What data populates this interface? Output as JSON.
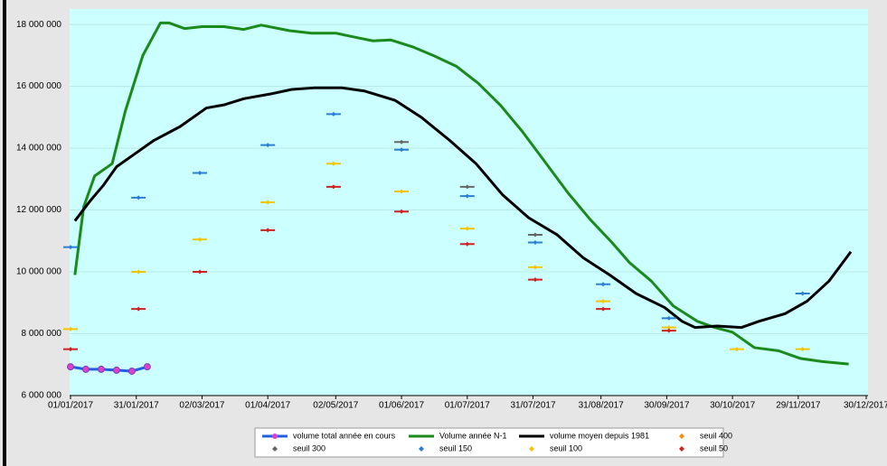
{
  "chart_data": {
    "type": "line",
    "xlim": [
      "2017-01-01",
      "2017-12-30"
    ],
    "xticks": [
      {
        "value": "2017-01-01",
        "label": "01/01/2017"
      },
      {
        "value": "2017-01-31",
        "label": "31/01/2017"
      },
      {
        "value": "2017-03-02",
        "label": "02/03/2017"
      },
      {
        "value": "2017-04-01",
        "label": "01/04/2017"
      },
      {
        "value": "2017-05-02",
        "label": "02/05/2017"
      },
      {
        "value": "2017-06-01",
        "label": "01/06/2017"
      },
      {
        "value": "2017-07-01",
        "label": "01/07/2017"
      },
      {
        "value": "2017-07-31",
        "label": "31/07/2017"
      },
      {
        "value": "2017-08-31",
        "label": "31/08/2017"
      },
      {
        "value": "2017-09-30",
        "label": "30/09/2017"
      },
      {
        "value": "2017-10-30",
        "label": "30/10/2017"
      },
      {
        "value": "2017-11-29",
        "label": "29/11/2017"
      },
      {
        "value": "2017-12-30",
        "label": "30/12/2017"
      }
    ],
    "ylim": [
      6000000,
      18500000
    ],
    "yticks": [
      {
        "value": 6000000,
        "label": "6 000 000"
      },
      {
        "value": 8000000,
        "label": "8 000 000"
      },
      {
        "value": 10000000,
        "label": "10 000 000"
      },
      {
        "value": 12000000,
        "label": "12 000 000"
      },
      {
        "value": 14000000,
        "label": "14 000 000"
      },
      {
        "value": 16000000,
        "label": "16 000 000"
      },
      {
        "value": 18000000,
        "label": "18 000 000"
      }
    ],
    "grid": true,
    "legend": "bottom",
    "series": [
      {
        "name": "volume total année en cours",
        "kind": "line",
        "color": "#2060e0",
        "marker_color": "#e040c8",
        "x": [
          "2017-01-01",
          "2017-01-08",
          "2017-01-15",
          "2017-01-22",
          "2017-01-29",
          "2017-02-05"
        ],
        "values": [
          6930000,
          6850000,
          6850000,
          6820000,
          6790000,
          6930000
        ]
      },
      {
        "name": "Volume année N-1",
        "kind": "line",
        "color": "#1a8a1a",
        "x": [
          "2017-01-03",
          "2017-01-07",
          "2017-01-12",
          "2017-01-20",
          "2017-01-26",
          "2017-02-03",
          "2017-02-11",
          "2017-02-15",
          "2017-02-22",
          "2017-03-02",
          "2017-03-12",
          "2017-03-21",
          "2017-03-29",
          "2017-04-11",
          "2017-04-21",
          "2017-05-02",
          "2017-05-12",
          "2017-05-19",
          "2017-05-27",
          "2017-06-06",
          "2017-06-16",
          "2017-06-26",
          "2017-07-06",
          "2017-07-16",
          "2017-07-26",
          "2017-08-05",
          "2017-08-16",
          "2017-08-26",
          "2017-09-05",
          "2017-09-13",
          "2017-09-23",
          "2017-10-03",
          "2017-10-14",
          "2017-10-22",
          "2017-10-30",
          "2017-11-09",
          "2017-11-20",
          "2017-11-30",
          "2017-12-10",
          "2017-12-22"
        ],
        "values": [
          9900000,
          12100000,
          13100000,
          13500000,
          15200000,
          17000000,
          18050000,
          18050000,
          17870000,
          17930000,
          17930000,
          17840000,
          17980000,
          17800000,
          17720000,
          17720000,
          17570000,
          17470000,
          17500000,
          17280000,
          16980000,
          16650000,
          16100000,
          15400000,
          14550000,
          13600000,
          12550000,
          11700000,
          10950000,
          10300000,
          9700000,
          8900000,
          8400000,
          8200000,
          8050000,
          7550000,
          7450000,
          7200000,
          7100000,
          7020000
        ]
      },
      {
        "name": "volume moyen depuis 1981",
        "kind": "line",
        "color": "#000000",
        "x": [
          "2017-01-03",
          "2017-01-10",
          "2017-01-16",
          "2017-01-22",
          "2017-01-30",
          "2017-02-08",
          "2017-02-20",
          "2017-03-04",
          "2017-03-12",
          "2017-03-21",
          "2017-04-02",
          "2017-04-12",
          "2017-04-22",
          "2017-05-05",
          "2017-05-15",
          "2017-05-29",
          "2017-06-10",
          "2017-06-23",
          "2017-07-05",
          "2017-07-17",
          "2017-07-29",
          "2017-08-11",
          "2017-08-23",
          "2017-09-04",
          "2017-09-16",
          "2017-09-29",
          "2017-10-07",
          "2017-10-13",
          "2017-10-23",
          "2017-11-03",
          "2017-11-11",
          "2017-11-23",
          "2017-12-03",
          "2017-12-13",
          "2017-12-23"
        ],
        "values": [
          11650000,
          12300000,
          12800000,
          13400000,
          13800000,
          14250000,
          14700000,
          15300000,
          15400000,
          15600000,
          15750000,
          15900000,
          15950000,
          15950000,
          15850000,
          15550000,
          15000000,
          14250000,
          13500000,
          12500000,
          11750000,
          11200000,
          10450000,
          9900000,
          9300000,
          8850000,
          8400000,
          8200000,
          8250000,
          8200000,
          8400000,
          8650000,
          9050000,
          9700000,
          10650000
        ]
      },
      {
        "name": "seuil 400",
        "kind": "scatter",
        "color": "#ff8c00",
        "x": [
          "2017-01-01",
          "2017-02-01",
          "2017-03-01",
          "2017-04-01",
          "2017-05-01",
          "2017-06-01",
          "2017-07-01",
          "2017-08-01",
          "2017-09-01",
          "2017-10-01",
          "2017-11-01",
          "2017-12-01"
        ],
        "values": [
          null,
          null,
          null,
          null,
          null,
          null,
          null,
          null,
          null,
          null,
          null,
          null
        ]
      },
      {
        "name": "seuil 300",
        "kind": "scatter",
        "color": "#666666",
        "x": [
          "2017-01-01",
          "2017-02-01",
          "2017-03-01",
          "2017-04-01",
          "2017-05-01",
          "2017-06-01",
          "2017-07-01",
          "2017-08-01",
          "2017-09-01",
          "2017-10-01",
          "2017-11-01",
          "2017-12-01"
        ],
        "values": [
          null,
          null,
          null,
          null,
          null,
          14200000,
          12750000,
          11200000,
          null,
          null,
          null,
          null
        ]
      },
      {
        "name": "seuil 150",
        "kind": "scatter",
        "color": "#2a7fd4",
        "x": [
          "2017-01-01",
          "2017-02-01",
          "2017-03-01",
          "2017-04-01",
          "2017-05-01",
          "2017-06-01",
          "2017-07-01",
          "2017-08-01",
          "2017-09-01",
          "2017-10-01",
          "2017-11-01",
          "2017-12-01"
        ],
        "values": [
          10800000,
          12400000,
          13200000,
          14100000,
          15100000,
          13950000,
          12450000,
          10950000,
          9600000,
          8500000,
          null,
          9300000
        ]
      },
      {
        "name": "seuil 100",
        "kind": "scatter",
        "color": "#f5c400",
        "x": [
          "2017-01-01",
          "2017-02-01",
          "2017-03-01",
          "2017-04-01",
          "2017-05-01",
          "2017-06-01",
          "2017-07-01",
          "2017-08-01",
          "2017-09-01",
          "2017-10-01",
          "2017-11-01",
          "2017-12-01"
        ],
        "values": [
          8150000,
          10000000,
          11050000,
          12250000,
          13500000,
          12600000,
          11400000,
          10150000,
          9050000,
          8200000,
          7500000,
          7500000
        ]
      },
      {
        "name": "seuil 50",
        "kind": "scatter",
        "color": "#cc2222",
        "x": [
          "2017-01-01",
          "2017-02-01",
          "2017-03-01",
          "2017-04-01",
          "2017-05-01",
          "2017-06-01",
          "2017-07-01",
          "2017-08-01",
          "2017-09-01",
          "2017-10-01",
          "2017-11-01",
          "2017-12-01"
        ],
        "values": [
          7500000,
          8800000,
          10000000,
          11350000,
          12750000,
          11950000,
          10900000,
          9750000,
          8800000,
          8100000,
          null,
          null
        ]
      }
    ]
  }
}
